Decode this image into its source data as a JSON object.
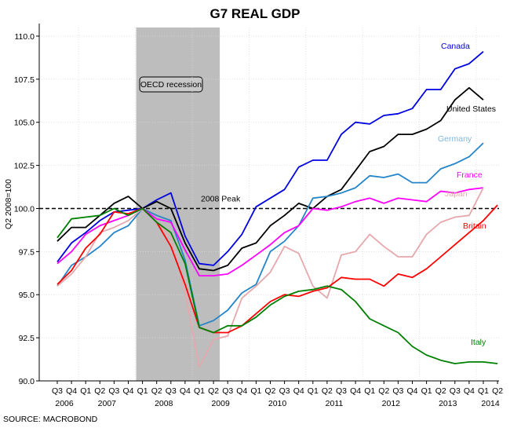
{
  "chart_data": {
    "type": "line",
    "title": "G7 REAL GDP",
    "ylabel": "Q2 2008=100",
    "source": "SOURCE: MACROBOND",
    "ylim": [
      90,
      110.5
    ],
    "yticks": [
      "90.0",
      "92.5",
      "95.0",
      "97.5",
      "100.0",
      "102.5",
      "105.0",
      "107.5",
      "110.0"
    ],
    "quarter_labels": [
      "Q3",
      "Q4",
      "Q1",
      "Q2",
      "Q3",
      "Q4",
      "Q1",
      "Q2",
      "Q3",
      "Q4",
      "Q1",
      "Q2",
      "Q3",
      "Q4",
      "Q1",
      "Q2",
      "Q3",
      "Q4",
      "Q1",
      "Q2",
      "Q3",
      "Q4",
      "Q1",
      "Q2",
      "Q3",
      "Q4",
      "Q1",
      "Q2",
      "Q3",
      "Q4",
      "Q1",
      "Q2"
    ],
    "year_labels": [
      {
        "label": "2006",
        "q": 0.5
      },
      {
        "label": "2007",
        "q": 3.5
      },
      {
        "label": "2008",
        "q": 7.5
      },
      {
        "label": "2009",
        "q": 11.5
      },
      {
        "label": "2010",
        "q": 15.5
      },
      {
        "label": "2011",
        "q": 19.5
      },
      {
        "label": "2012",
        "q": 23.5
      },
      {
        "label": "2013",
        "q": 27.5
      },
      {
        "label": "2014",
        "q": 30.5
      }
    ],
    "recession": {
      "label": "OECD recession",
      "start_q": 6,
      "end_q": 11
    },
    "peak_line": {
      "label": "2008 Peak",
      "value": 100
    },
    "series": [
      {
        "name": "Canada",
        "color": "#0000e0",
        "values": [
          96.9,
          98.0,
          98.6,
          99.3,
          99.8,
          99.9,
          100.0,
          100.5,
          100.9,
          98.4,
          96.8,
          96.7,
          97.5,
          98.5,
          100.1,
          100.6,
          101.1,
          102.4,
          102.8,
          102.8,
          104.3,
          105.0,
          104.9,
          105.4,
          105.5,
          105.8,
          106.9,
          106.9,
          108.1,
          108.4,
          109.1
        ]
      },
      {
        "name": "United States",
        "color": "#000000",
        "values": [
          98.1,
          98.9,
          98.9,
          99.6,
          100.3,
          100.7,
          100.0,
          100.4,
          100.0,
          98.0,
          96.5,
          96.4,
          96.7,
          97.7,
          98.0,
          99.0,
          99.6,
          100.3,
          100.0,
          100.7,
          101.1,
          102.2,
          103.3,
          103.6,
          104.3,
          104.3,
          104.6,
          105.1,
          106.3,
          107.0,
          106.3
        ]
      },
      {
        "name": "Germany",
        "color": "#2585c8",
        "values": [
          95.5,
          96.7,
          97.2,
          97.8,
          98.6,
          99.0,
          100.0,
          99.6,
          99.3,
          97.0,
          93.2,
          93.5,
          94.1,
          95.1,
          95.6,
          97.5,
          98.1,
          99.0,
          100.6,
          100.7,
          100.9,
          101.2,
          101.9,
          101.8,
          102.0,
          101.5,
          101.5,
          102.3,
          102.6,
          103.0,
          103.8
        ]
      },
      {
        "name": "France",
        "color": "#ff00ff",
        "values": [
          96.8,
          97.5,
          98.5,
          99.0,
          99.3,
          99.6,
          100.0,
          99.4,
          99.2,
          97.6,
          96.1,
          96.1,
          96.2,
          96.7,
          97.3,
          97.9,
          98.6,
          99.0,
          100.0,
          99.9,
          100.1,
          100.4,
          100.6,
          100.3,
          100.6,
          100.5,
          100.4,
          101.0,
          100.9,
          101.1,
          101.2
        ]
      },
      {
        "name": "Japan",
        "color": "#e6a8ad",
        "values": [
          95.5,
          96.2,
          97.2,
          98.6,
          98.9,
          99.3,
          100.0,
          99.2,
          98.3,
          95.1,
          90.8,
          92.4,
          92.6,
          94.8,
          95.5,
          96.3,
          97.8,
          97.4,
          95.5,
          94.8,
          97.3,
          97.5,
          98.5,
          97.8,
          97.2,
          97.2,
          98.5,
          99.2,
          99.5,
          99.6,
          101.2
        ]
      },
      {
        "name": "Britain",
        "color": "#ff0000",
        "values": [
          95.6,
          96.4,
          97.7,
          98.5,
          99.8,
          99.7,
          100.0,
          99.2,
          97.8,
          95.6,
          93.1,
          92.8,
          92.8,
          93.2,
          93.9,
          94.6,
          95.0,
          94.9,
          95.2,
          95.4,
          96.0,
          95.9,
          95.9,
          95.5,
          96.2,
          96.0,
          96.5,
          97.2,
          97.9,
          98.6,
          99.3,
          100.2
        ]
      },
      {
        "name": "Italy",
        "color": "#008000",
        "values": [
          98.3,
          99.4,
          99.5,
          99.6,
          100.0,
          99.6,
          100.0,
          99.2,
          98.6,
          96.8,
          93.1,
          92.8,
          93.2,
          93.2,
          93.7,
          94.4,
          94.9,
          95.2,
          95.3,
          95.5,
          95.3,
          94.6,
          93.6,
          93.2,
          92.8,
          92.0,
          91.5,
          91.2,
          91.0,
          91.1,
          91.1,
          91.0
        ]
      }
    ]
  }
}
